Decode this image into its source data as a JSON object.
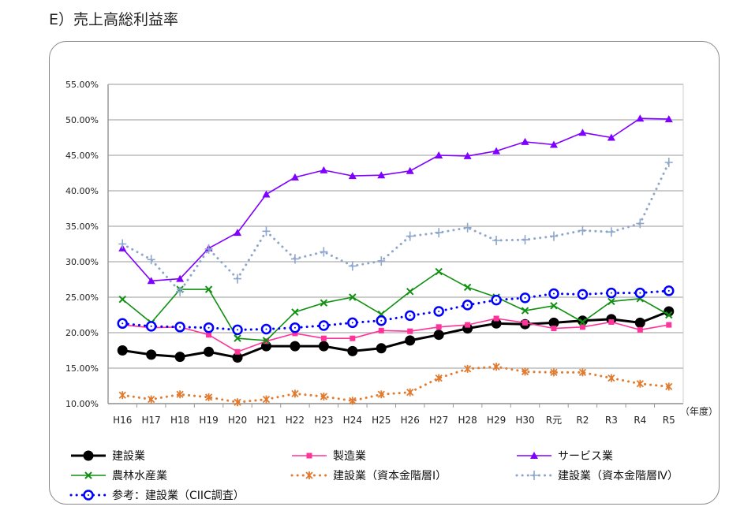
{
  "title": "E）売上高総利益率",
  "chart_data": {
    "type": "line",
    "title": "E）売上高総利益率",
    "xlabel": "（年度）",
    "ylabel": "",
    "ylim": [
      10,
      55
    ],
    "yticks": [
      "10.00%",
      "15.00%",
      "20.00%",
      "25.00%",
      "30.00%",
      "35.00%",
      "40.00%",
      "45.00%",
      "50.00%",
      "55.00%"
    ],
    "grid": true,
    "legend_position": "bottom",
    "categories": [
      "H16",
      "H17",
      "H18",
      "H19",
      "H20",
      "H21",
      "H22",
      "H23",
      "H24",
      "H25",
      "H26",
      "H27",
      "H28",
      "H29",
      "H30",
      "R元",
      "R2",
      "R3",
      "R4",
      "R5"
    ],
    "series": [
      {
        "name": "建設業",
        "color": "#000000",
        "marker": "circle",
        "dash": "solid",
        "values": [
          17.5,
          16.9,
          16.6,
          17.3,
          16.5,
          18.1,
          18.1,
          18.1,
          17.4,
          17.8,
          18.9,
          19.7,
          20.6,
          21.3,
          21.2,
          21.4,
          21.7,
          21.9,
          21.4,
          23.0
        ]
      },
      {
        "name": "製造業",
        "color": "#ff3399",
        "marker": "square",
        "dash": "solid",
        "values": [
          21.1,
          20.7,
          20.8,
          19.7,
          17.3,
          18.8,
          19.9,
          19.2,
          19.2,
          20.3,
          20.2,
          20.8,
          21.1,
          22.0,
          21.4,
          20.6,
          20.8,
          21.5,
          20.4,
          21.1
        ]
      },
      {
        "name": "サービス業",
        "color": "#7f00ff",
        "marker": "triangle",
        "dash": "solid",
        "values": [
          31.9,
          27.3,
          27.6,
          31.9,
          34.1,
          39.5,
          41.9,
          42.9,
          42.1,
          42.2,
          42.8,
          45.0,
          44.9,
          45.6,
          46.9,
          46.5,
          48.2,
          47.5,
          50.2,
          50.1
        ]
      },
      {
        "name": "農林水産業",
        "color": "#109010",
        "marker": "x",
        "dash": "solid",
        "values": [
          24.7,
          21.4,
          26.1,
          26.1,
          19.2,
          18.9,
          22.9,
          24.2,
          25.0,
          22.6,
          25.8,
          28.6,
          26.4,
          25.0,
          23.1,
          23.8,
          21.5,
          24.4,
          24.8,
          22.5
        ]
      },
      {
        "name": "建設業（資本金階層Ⅰ）",
        "color": "#e07b30",
        "marker": "star",
        "dash": "dot",
        "values": [
          11.2,
          10.6,
          11.3,
          10.9,
          10.2,
          10.6,
          11.4,
          11.0,
          10.4,
          11.3,
          11.6,
          13.6,
          14.9,
          15.2,
          14.5,
          14.4,
          14.4,
          13.6,
          12.8,
          12.4
        ]
      },
      {
        "name": "建設業（資本金階層Ⅳ）",
        "color": "#8ea6cc",
        "marker": "plus",
        "dash": "dot",
        "values": [
          32.5,
          30.3,
          25.8,
          31.8,
          27.6,
          34.3,
          30.4,
          31.4,
          29.4,
          30.1,
          33.6,
          34.1,
          34.8,
          33.0,
          33.1,
          33.6,
          34.4,
          34.2,
          35.4,
          44.0
        ]
      },
      {
        "name": "参考：建設業（CIIC調査）",
        "color": "#0000ff",
        "marker": "ring",
        "dash": "dot",
        "values": [
          21.3,
          20.9,
          20.8,
          20.7,
          20.4,
          20.5,
          20.7,
          21.0,
          21.4,
          21.7,
          22.4,
          23.0,
          23.9,
          24.6,
          24.9,
          25.5,
          25.4,
          25.6,
          25.6,
          25.9
        ]
      }
    ]
  }
}
